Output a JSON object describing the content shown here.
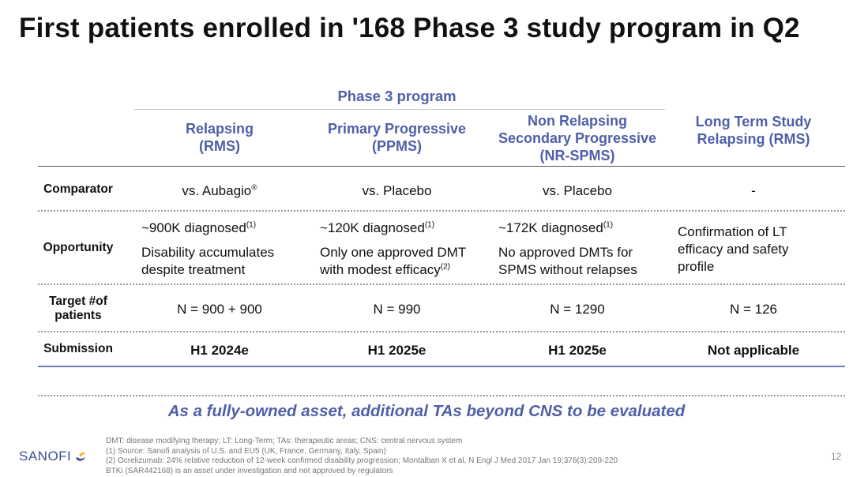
{
  "title": "First patients enrolled in '168 Phase 3 study program in Q2",
  "phase_label": "Phase 3 program",
  "columns": [
    {
      "line1": "Relapsing",
      "line2": "(RMS)",
      "line3": ""
    },
    {
      "line1": "Primary Progressive",
      "line2": "(PPMS)",
      "line3": ""
    },
    {
      "line1": "Non Relapsing",
      "line2": "Secondary Progressive",
      "line3": "(NR-SPMS)"
    },
    {
      "line1": "Long Term Study",
      "line2": "Relapsing (RMS)",
      "line3": ""
    }
  ],
  "rows": {
    "comparator": {
      "label": "Comparator",
      "cells": [
        "vs. Aubagio",
        "vs. Placebo",
        "vs. Placebo",
        "-"
      ],
      "reg_mark": "®"
    },
    "opportunity": {
      "label": "Opportunity",
      "cells": [
        {
          "diag": "~900K diagnosed",
          "diag_sup": "(1)",
          "desc1": "Disability accumulates",
          "desc2": "despite treatment",
          "desc2_sup": ""
        },
        {
          "diag": "~120K diagnosed",
          "diag_sup": "(1)",
          "desc1": "Only one approved DMT",
          "desc2": "with modest efficacy",
          "desc2_sup": "(2)"
        },
        {
          "diag": "~172K diagnosed",
          "diag_sup": "(1)",
          "desc1": "No approved DMTs for",
          "desc2": "SPMS without relapses",
          "desc2_sup": ""
        },
        {
          "l1": "Confirmation of LT",
          "l2": "efficacy and safety",
          "l3": "profile"
        }
      ]
    },
    "target": {
      "label1": "Target #of",
      "label2": "patients",
      "cells": [
        "N = 900 + 900",
        "N = 990",
        "N = 1290",
        "N = 126"
      ]
    },
    "submission": {
      "label": "Submission",
      "cells": [
        "H1 2024e",
        "H1 2025e",
        "H1 2025e",
        "Not applicable"
      ]
    }
  },
  "tagline": "As a fully-owned asset, additional TAs beyond CNS  to be evaluated",
  "footnotes": [
    "DMT: disease modifying therapy; LT: Long-Term; TAs: therapeutic areas; CNS: central nervous system",
    "(1) Source: Sanofi analysis of U.S. and EU5 (UK, France, Germany, Italy, Spain)",
    "(2) Ocrelizumab: 24% relative reduction of 12-week confirmed disability progression; Montalban X et al, N Engl J Med 2017 Jan 19;376(3):209-220",
    "BTKi (SAR442168) is an asset under investigation and not approved by regulators"
  ],
  "logo_text": "SANOFI",
  "page_number": "12",
  "colors": {
    "accent": "#4f5fa8",
    "rule_blue": "#6b7ab8"
  }
}
